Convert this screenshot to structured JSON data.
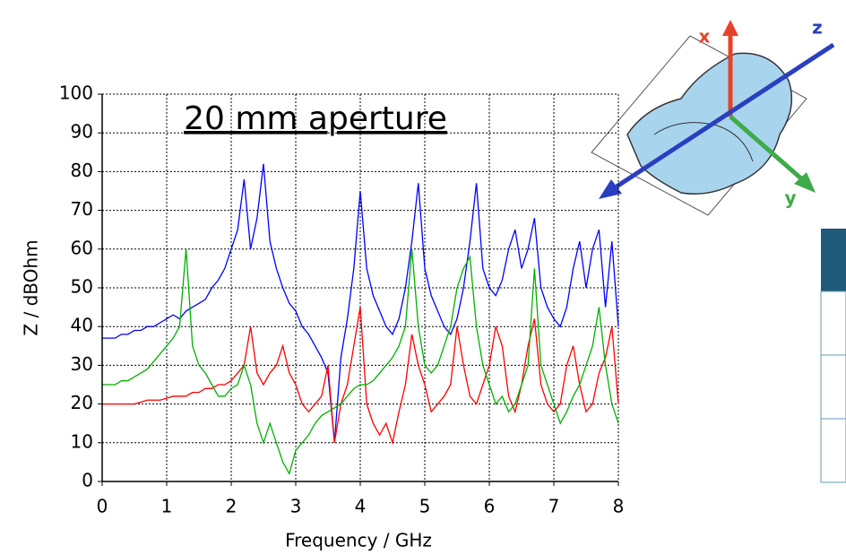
{
  "chart_data": {
    "type": "line",
    "annotation": "20 mm aperture",
    "x_label": "Frequency / GHz",
    "y_label": "Z / dBOhm",
    "x": [
      0,
      0.1,
      0.2,
      0.3,
      0.4,
      0.5,
      0.6,
      0.7,
      0.8,
      0.9,
      1,
      1.1,
      1.2,
      1.3,
      1.4,
      1.5,
      1.6,
      1.7,
      1.8,
      1.9,
      2,
      2.1,
      2.2,
      2.3,
      2.4,
      2.5,
      2.6,
      2.7,
      2.8,
      2.9,
      3,
      3.1,
      3.2,
      3.3,
      3.4,
      3.5,
      3.6,
      3.7,
      3.8,
      3.9,
      4,
      4.1,
      4.2,
      4.3,
      4.4,
      4.5,
      4.6,
      4.7,
      4.8,
      4.9,
      5,
      5.1,
      5.2,
      5.3,
      5.4,
      5.5,
      5.6,
      5.7,
      5.8,
      5.9,
      6,
      6.1,
      6.2,
      6.3,
      6.4,
      6.5,
      6.6,
      6.7,
      6.8,
      6.9,
      7,
      7.1,
      7.2,
      7.3,
      7.4,
      7.5,
      7.6,
      7.7,
      7.8,
      7.9,
      8
    ],
    "series": [
      {
        "color": "#0000ff",
        "values": [
          37,
          37,
          37,
          38,
          38,
          39,
          39,
          40,
          40,
          41,
          42,
          43,
          42,
          44,
          45,
          46,
          47,
          50,
          52,
          55,
          60,
          65,
          78,
          60,
          68,
          82,
          62,
          55,
          50,
          46,
          44,
          40,
          38,
          35,
          32,
          28,
          10,
          32,
          42,
          55,
          75,
          55,
          48,
          44,
          40,
          38,
          42,
          50,
          62,
          77,
          55,
          48,
          44,
          40,
          38,
          42,
          50,
          62,
          77,
          55,
          50,
          48,
          52,
          60,
          65,
          55,
          60,
          68,
          50,
          45,
          42,
          40,
          45,
          55,
          62,
          50,
          60,
          65,
          45,
          62,
          40
        ]
      },
      {
        "color": "#ff0000",
        "values": [
          20,
          20,
          20,
          20,
          20,
          20,
          20.5,
          21,
          21,
          21,
          21.5,
          22,
          22,
          22,
          23,
          23,
          24,
          24,
          25,
          25,
          26,
          28,
          30,
          40,
          28,
          25,
          28,
          30,
          35,
          28,
          25,
          20,
          18,
          20,
          22,
          30,
          10,
          20,
          25,
          35,
          45,
          20,
          15,
          12,
          15,
          10,
          18,
          25,
          38,
          30,
          25,
          18,
          20,
          22,
          25,
          40,
          30,
          22,
          20,
          25,
          30,
          40,
          35,
          22,
          18,
          25,
          35,
          42,
          25,
          20,
          18,
          20,
          30,
          35,
          25,
          18,
          20,
          28,
          32,
          40,
          20
        ]
      },
      {
        "color": "#00b000",
        "values": [
          25,
          25,
          25,
          26,
          26,
          27,
          28,
          29,
          31,
          33,
          35,
          37,
          40,
          60,
          35,
          30,
          28,
          25,
          22,
          22,
          24,
          25,
          30,
          25,
          15,
          10,
          15,
          10,
          5,
          2,
          8,
          10,
          12,
          15,
          17,
          18,
          19,
          20,
          22,
          24,
          25,
          25,
          26,
          28,
          30,
          32,
          35,
          40,
          60,
          40,
          30,
          28,
          30,
          35,
          40,
          50,
          55,
          58,
          40,
          30,
          25,
          20,
          22,
          18,
          20,
          25,
          30,
          55,
          30,
          25,
          20,
          15,
          18,
          22,
          25,
          30,
          35,
          45,
          30,
          20,
          15
        ]
      }
    ],
    "xlim": [
      0,
      8
    ],
    "ylim": [
      0,
      100
    ],
    "xticks": [
      0,
      1,
      2,
      3,
      4,
      5,
      6,
      7,
      8
    ],
    "yticks": [
      0,
      10,
      20,
      30,
      40,
      50,
      60,
      70,
      80,
      90,
      100
    ],
    "grid": true
  },
  "illustration": {
    "axis_labels": [
      "x",
      "y",
      "z"
    ]
  }
}
